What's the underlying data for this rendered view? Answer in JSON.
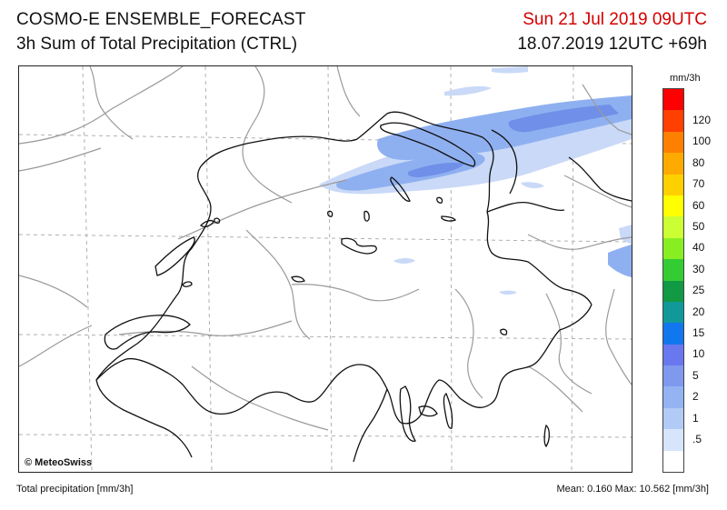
{
  "header": {
    "title": "COSMO-E ENSEMBLE_FORECAST",
    "subtitle": "3h Sum of Total Precipitation (CTRL)",
    "valid_time": "Sun 21 Jul 2019 09UTC",
    "run_time": "18.07.2019 12UTC +69h",
    "valid_time_color": "#d40000"
  },
  "map": {
    "copyright": "© MeteoSwiss",
    "precip_color_light": "#c9d9f7",
    "precip_color_mid": "#8fb0f0",
    "precip_color_dark": "#6f8fe8",
    "border_color": "#111111",
    "lake_color": "#111111",
    "region_color": "#9a9a9a",
    "grid_color": "#b0b0b0"
  },
  "legend": {
    "unit": "mm/3h",
    "levels": [
      {
        "label": "",
        "color": "#ff0000"
      },
      {
        "label": "120",
        "color": "#ff4000"
      },
      {
        "label": "100",
        "color": "#ff8000"
      },
      {
        "label": "80",
        "color": "#ffaa00"
      },
      {
        "label": "70",
        "color": "#ffd000"
      },
      {
        "label": "60",
        "color": "#ffff00"
      },
      {
        "label": "50",
        "color": "#ccff33"
      },
      {
        "label": "40",
        "color": "#88ee22"
      },
      {
        "label": "30",
        "color": "#33cc33"
      },
      {
        "label": "25",
        "color": "#119944"
      },
      {
        "label": "20",
        "color": "#119999"
      },
      {
        "label": "15",
        "color": "#1177ee"
      },
      {
        "label": "10",
        "color": "#6a78f0"
      },
      {
        "label": "5",
        "color": "#7f99ee"
      },
      {
        "label": "2",
        "color": "#93b3f3"
      },
      {
        "label": "1",
        "color": "#b2cbf6"
      },
      {
        "label": ".5",
        "color": "#d6e5fb"
      },
      {
        "label": "",
        "color": "#ffffff"
      }
    ]
  },
  "footer": {
    "left": "Total precipitation [mm/3h]",
    "right": "Mean:   0.160 Max:  10.562 [mm/3h]"
  }
}
